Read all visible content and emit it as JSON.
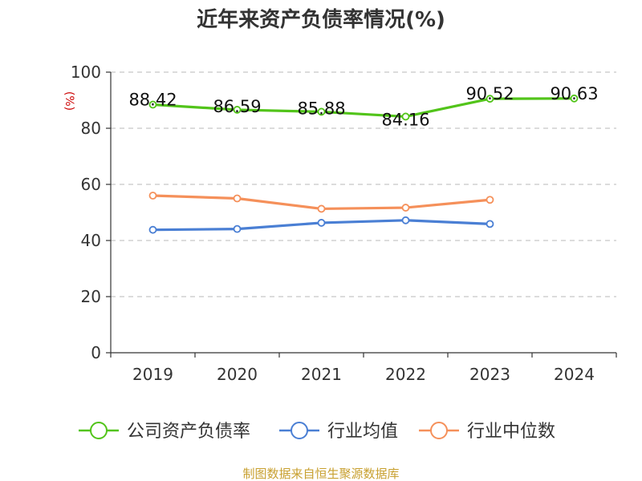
{
  "chart_data": {
    "type": "line",
    "title": "近年来资产负债率情况(%)",
    "ylabel": "(%)",
    "xlabel": "",
    "categories": [
      "2019",
      "2020",
      "2021",
      "2022",
      "2023",
      "2024"
    ],
    "ylim": [
      0,
      100
    ],
    "yticks": [
      0,
      20,
      40,
      60,
      80,
      100
    ],
    "grid": true,
    "legend_position": "bottom",
    "series": [
      {
        "name": "公司资产负债率",
        "color": "#52c41a",
        "values": [
          88.42,
          86.59,
          85.88,
          84.16,
          90.52,
          90.63
        ],
        "labels": [
          "88.42",
          "86.59",
          "85.88",
          "84.16",
          "90.52",
          "90.63"
        ]
      },
      {
        "name": "行业均值",
        "color": "#4a7fd4",
        "values": [
          43.8,
          44.1,
          46.3,
          47.2,
          45.9,
          null
        ]
      },
      {
        "name": "行业中位数",
        "color": "#f5905a",
        "values": [
          56.0,
          55.0,
          51.3,
          51.7,
          54.5,
          null
        ]
      }
    ]
  },
  "source": "制图数据来自恒生聚源数据库"
}
